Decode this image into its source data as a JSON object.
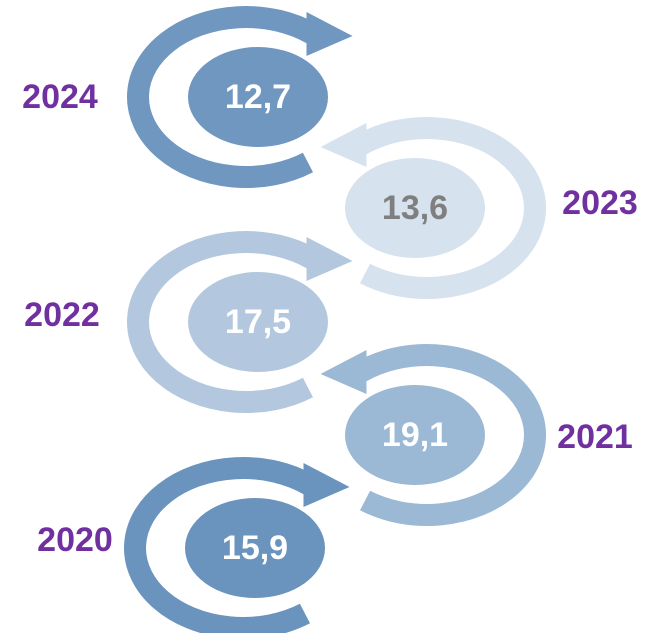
{
  "items": [
    {
      "year": "2024",
      "value": "12,7"
    },
    {
      "year": "2023",
      "value": "13,6"
    },
    {
      "year": "2022",
      "value": "17,5"
    },
    {
      "year": "2021",
      "value": "19,1"
    },
    {
      "year": "2020",
      "value": "15,9"
    }
  ]
}
